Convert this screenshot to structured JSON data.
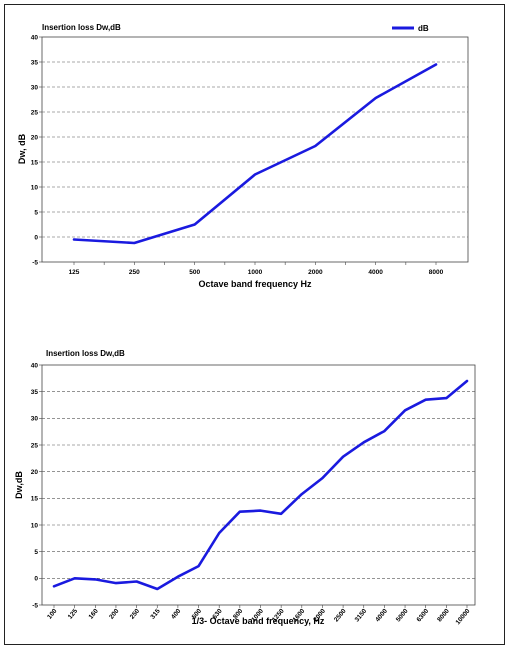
{
  "chart_data": [
    {
      "type": "line",
      "title": "Insertion loss Dw,dB",
      "xlabel": "Octave band frequency Hz",
      "ylabel": "Dw, dB",
      "ylim": [
        -5,
        40
      ],
      "yticks": [
        -5,
        0,
        5,
        10,
        15,
        20,
        25,
        30,
        35,
        40
      ],
      "grid": "horizontal dashed",
      "legend": "top-right",
      "categories": [
        "125",
        "250",
        "500",
        "1000",
        "2000",
        "4000",
        "8000"
      ],
      "series": [
        {
          "name": "dB",
          "color": "#1a1adf",
          "x": [
            125,
            250,
            500,
            1000,
            2000,
            4000,
            8000
          ],
          "values": [
            -0.5,
            -1.2,
            2.5,
            12.5,
            18.2,
            27.8,
            34.5
          ]
        }
      ]
    },
    {
      "type": "line",
      "title": "Insertion loss Dw,dB",
      "xlabel": "1/3- Octave band frequency, Hz",
      "ylabel": "Dw,dB",
      "ylim": [
        -5,
        40
      ],
      "yticks": [
        -5,
        0,
        5,
        10,
        15,
        20,
        25,
        30,
        35,
        40
      ],
      "grid": "horizontal dashed",
      "categories": [
        "100",
        "125",
        "160",
        "200",
        "250",
        "315",
        "400",
        "500",
        "630",
        "800",
        "1000",
        "1250",
        "1600",
        "2000",
        "2500",
        "3150",
        "4000",
        "5000",
        "6300",
        "8000",
        "10000"
      ],
      "series": [
        {
          "color": "#1a1adf",
          "values": [
            -1.5,
            0,
            -0.2,
            -0.9,
            -0.6,
            -2.0,
            0.3,
            2.3,
            8.5,
            12.5,
            12.7,
            12.1,
            15.8,
            18.8,
            22.8,
            25.5,
            27.6,
            31.5,
            33.5,
            33.8,
            37.0
          ]
        }
      ]
    }
  ]
}
